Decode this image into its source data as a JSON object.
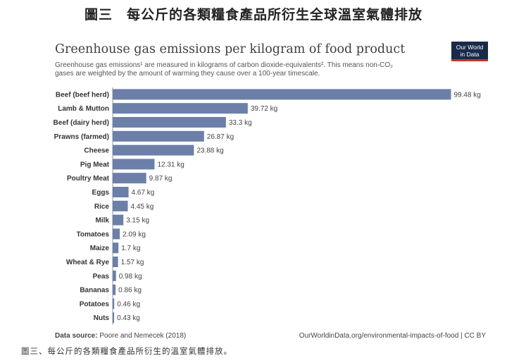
{
  "heading": "圖三　每公斤的各類糧食產品所衍生全球溫室氣體排放",
  "logo": {
    "line1": "Our World",
    "line2": "in Data"
  },
  "chart_data": {
    "type": "bar",
    "orientation": "horizontal",
    "title": "Greenhouse gas emissions per kilogram of food product",
    "subtitle_line1": "Greenhouse gas emissions¹ are measured in kilograms of carbon dioxide-equivalents². This means non-CO₂",
    "subtitle_line2": "gases are weighted by the amount of warming they cause over a 100-year timescale.",
    "categories": [
      "Beef (beef herd)",
      "Lamb & Mutton",
      "Beef (dairy herd)",
      "Prawns (farmed)",
      "Cheese",
      "Pig Meat",
      "Poultry Meat",
      "Eggs",
      "Rice",
      "Milk",
      "Tomatoes",
      "Maize",
      "Wheat & Rye",
      "Peas",
      "Bananas",
      "Potatoes",
      "Nuts"
    ],
    "values": [
      99.48,
      39.72,
      33.3,
      26.87,
      23.88,
      12.31,
      9.87,
      4.67,
      4.45,
      3.15,
      2.09,
      1.7,
      1.57,
      0.98,
      0.86,
      0.46,
      0.43
    ],
    "value_labels": [
      "99.48 kg",
      "39.72 kg",
      "33.3 kg",
      "26.87 kg",
      "23.88 kg",
      "12.31 kg",
      "9.87 kg",
      "4.67 kg",
      "4.45 kg",
      "3.15 kg",
      "2.09 kg",
      "1.7 kg",
      "1.57 kg",
      "0.98 kg",
      "0.86 kg",
      "0.46 kg",
      "0.43 kg"
    ],
    "xlim": [
      0,
      100
    ],
    "bar_color": "#6b7fa8",
    "grid": false
  },
  "footer": {
    "source_label": "Data source:",
    "source_text": "Poore and Nemecek (2018)",
    "url": "OurWorldinData.org/environmental-impacts-of-food | CC BY"
  },
  "caption": "圖三、每公斤的各類糧食產品所衍生的溫室氣體排放。"
}
